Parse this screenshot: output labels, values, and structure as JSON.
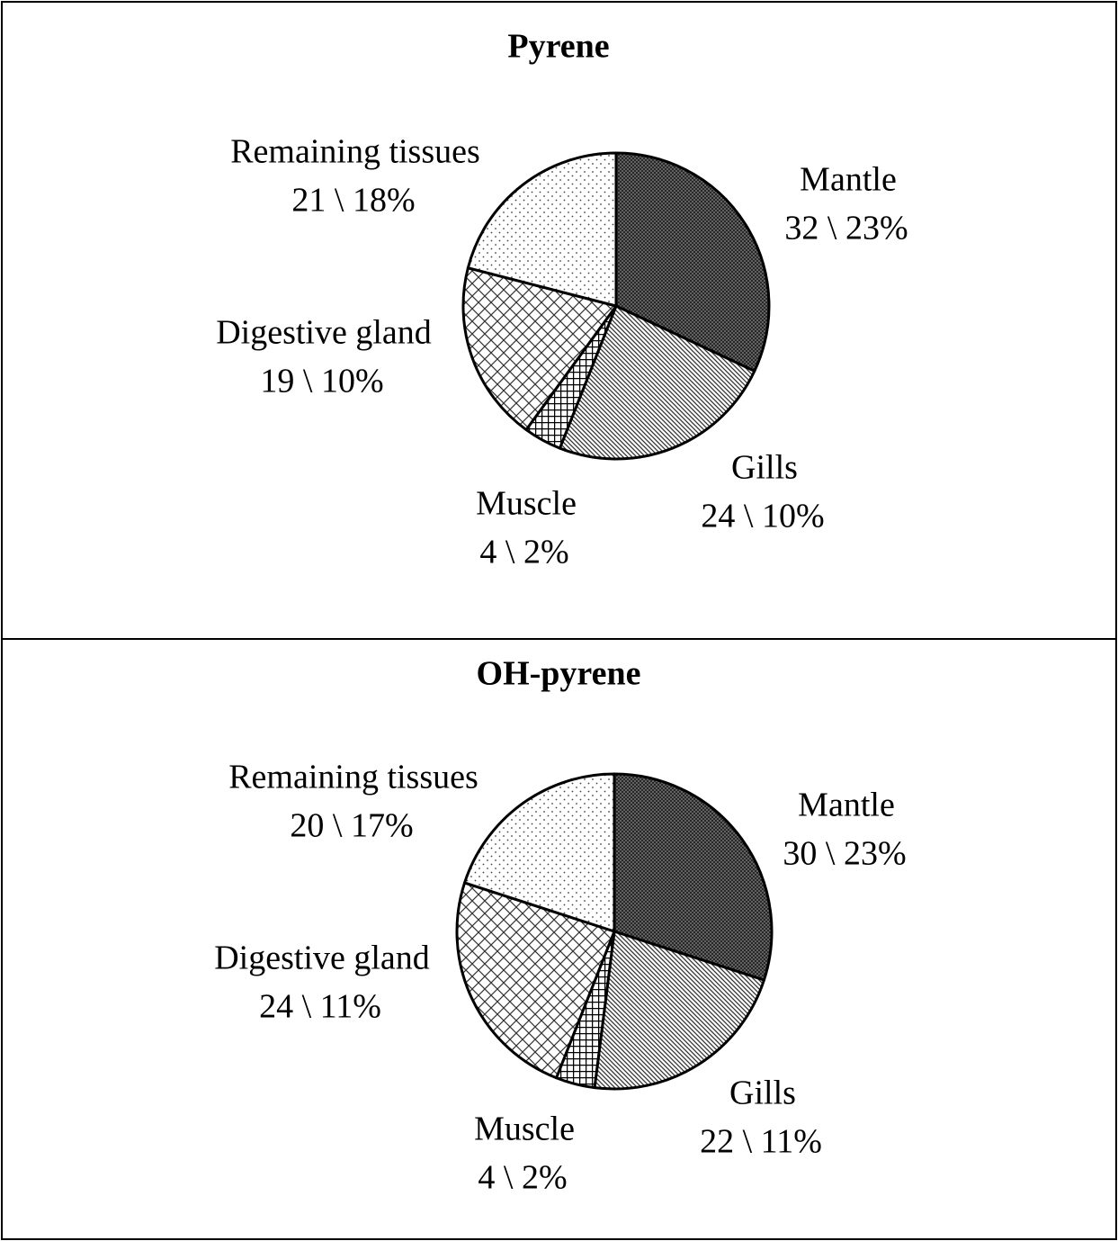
{
  "chart_data": [
    {
      "type": "pie",
      "title": "Pyrene",
      "categories": [
        "Mantle",
        "Gills",
        "Muscle",
        "Digestive gland",
        "Remaining tissues"
      ],
      "values": [
        32,
        24,
        4,
        19,
        21
      ],
      "value_labels": [
        "32 \\  23%",
        "24 \\  10%",
        "4 \\  2%",
        "19 \\  10%",
        "21 \\  18%"
      ]
    },
    {
      "type": "pie",
      "title": "OH-pyrene",
      "categories": [
        "Mantle",
        "Gills",
        "Muscle",
        "Digestive gland",
        "Remaining tissues"
      ],
      "values": [
        30,
        22,
        4,
        24,
        20
      ],
      "value_labels": [
        "30 \\  23%",
        "22 \\  11%",
        "4 \\  2%",
        "24 \\  11%",
        "20 \\  17%"
      ]
    }
  ]
}
